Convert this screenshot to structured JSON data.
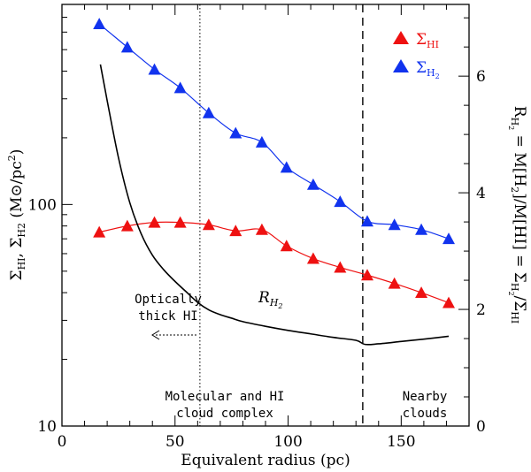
{
  "chart_data": {
    "type": "line",
    "xlabel": "Equivalent radius (pc)",
    "ylabel_left": "Σ_HI, Σ_H2 (M⊙/pc²)",
    "ylabel_right": "R_H2 = M[H2]/M[HI] = Σ_H2/Σ_HI",
    "xlim": [
      0,
      180
    ],
    "ylim_left": [
      10,
      800
    ],
    "yscale_left": "log",
    "ylim_right": [
      0,
      7.23
    ],
    "x_ticks": [
      0,
      50,
      100,
      150
    ],
    "y_ticks_left": [
      10,
      100
    ],
    "y_ticks_right": [
      0,
      2,
      4,
      6
    ],
    "series": [
      {
        "name": "Σ_HI",
        "color": "#ee1111",
        "marker": "triangle",
        "x": [
          16.5,
          28.9,
          40.9,
          52.3,
          64.9,
          76.8,
          88.4,
          99.3,
          111.1,
          123.0,
          135.0,
          147.0,
          158.9,
          171.0
        ],
        "y": [
          75,
          80,
          83,
          83,
          81,
          76,
          77,
          65,
          57,
          52,
          48,
          44,
          40,
          36
        ]
      },
      {
        "name": "Σ_H2",
        "color": "#1133ee",
        "marker": "triangle",
        "x": [
          16.5,
          28.9,
          40.9,
          52.3,
          64.9,
          76.8,
          88.4,
          99.3,
          111.1,
          123.0,
          135.0,
          147.0,
          158.9,
          171.0
        ],
        "y": [
          653,
          513,
          407,
          336,
          259,
          210,
          191,
          147,
          123,
          103,
          84,
          81,
          77,
          70
        ]
      },
      {
        "name": "R_H2",
        "color": "#000000",
        "axis": "right",
        "x": [
          17,
          20,
          25,
          30,
          35,
          40,
          45,
          50,
          55,
          60,
          65,
          70,
          75,
          80,
          90,
          100,
          110,
          120,
          130,
          134,
          140,
          150,
          160,
          171
        ],
        "y": [
          6.2,
          5.58,
          4.6,
          3.83,
          3.3,
          2.93,
          2.68,
          2.48,
          2.3,
          2.12,
          1.99,
          1.91,
          1.85,
          1.79,
          1.71,
          1.64,
          1.58,
          1.52,
          1.47,
          1.4,
          1.41,
          1.45,
          1.49,
          1.54
        ]
      }
    ],
    "vlines": [
      {
        "x": 61,
        "style": "dotted"
      },
      {
        "x": 133,
        "style": "dashed"
      }
    ],
    "legend": {
      "position": "top-right",
      "entries": [
        {
          "label": "Σ",
          "sub": "HI",
          "color": "#ee1111"
        },
        {
          "label": "Σ",
          "sub": "H2",
          "color": "#1133ee"
        }
      ]
    },
    "annotations": {
      "optically_thick_line1": "Optically",
      "optically_thick_line2": "thick HI",
      "molecular_line1": "Molecular and HI",
      "molecular_line2": "cloud complex",
      "nearby_line1": "Nearby",
      "nearby_line2": "clouds",
      "rh2_label": "R",
      "rh2_sub": "H2"
    }
  }
}
